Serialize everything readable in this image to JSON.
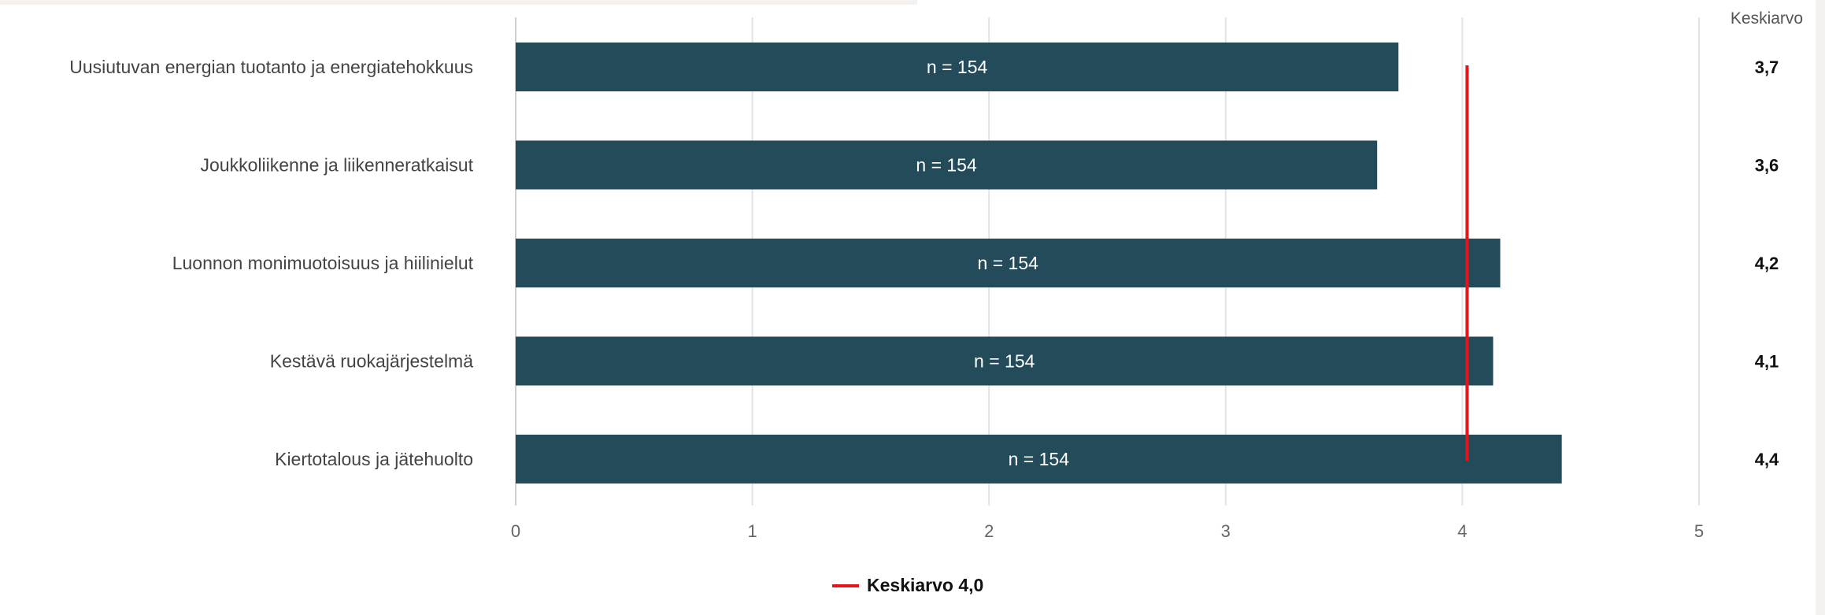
{
  "chart_data": {
    "type": "bar",
    "orientation": "horizontal",
    "categories": [
      "Uusiutuvan energian tuotanto ja energiatehokkuus",
      "Joukkoliikenne ja liikenneratkaisut",
      "Luonnon monimuotoisuus ja hiilinielut",
      "Kestävä ruokajärjestelmä",
      "Kiertotalous ja jätehuolto"
    ],
    "values": [
      3.73,
      3.64,
      4.16,
      4.13,
      4.42
    ],
    "bar_labels": [
      "n = 154",
      "n = 154",
      "n = 154",
      "n = 154",
      "n = 154"
    ],
    "mean_column": {
      "header": "Keskiarvo",
      "values": [
        "3,7",
        "3,6",
        "4,2",
        "4,1",
        "4,4"
      ]
    },
    "reference_line": {
      "value": 4.02,
      "label": "Keskiarvo 4,0"
    },
    "xlim": [
      0,
      5
    ],
    "x_ticks": [
      "0",
      "1",
      "2",
      "3",
      "4",
      "5"
    ],
    "grid": true,
    "legend_position": "bottom-center",
    "colors": {
      "bar": "#244b5a",
      "reference_line": "#e8131a",
      "grid": "#e3e3e3"
    }
  }
}
